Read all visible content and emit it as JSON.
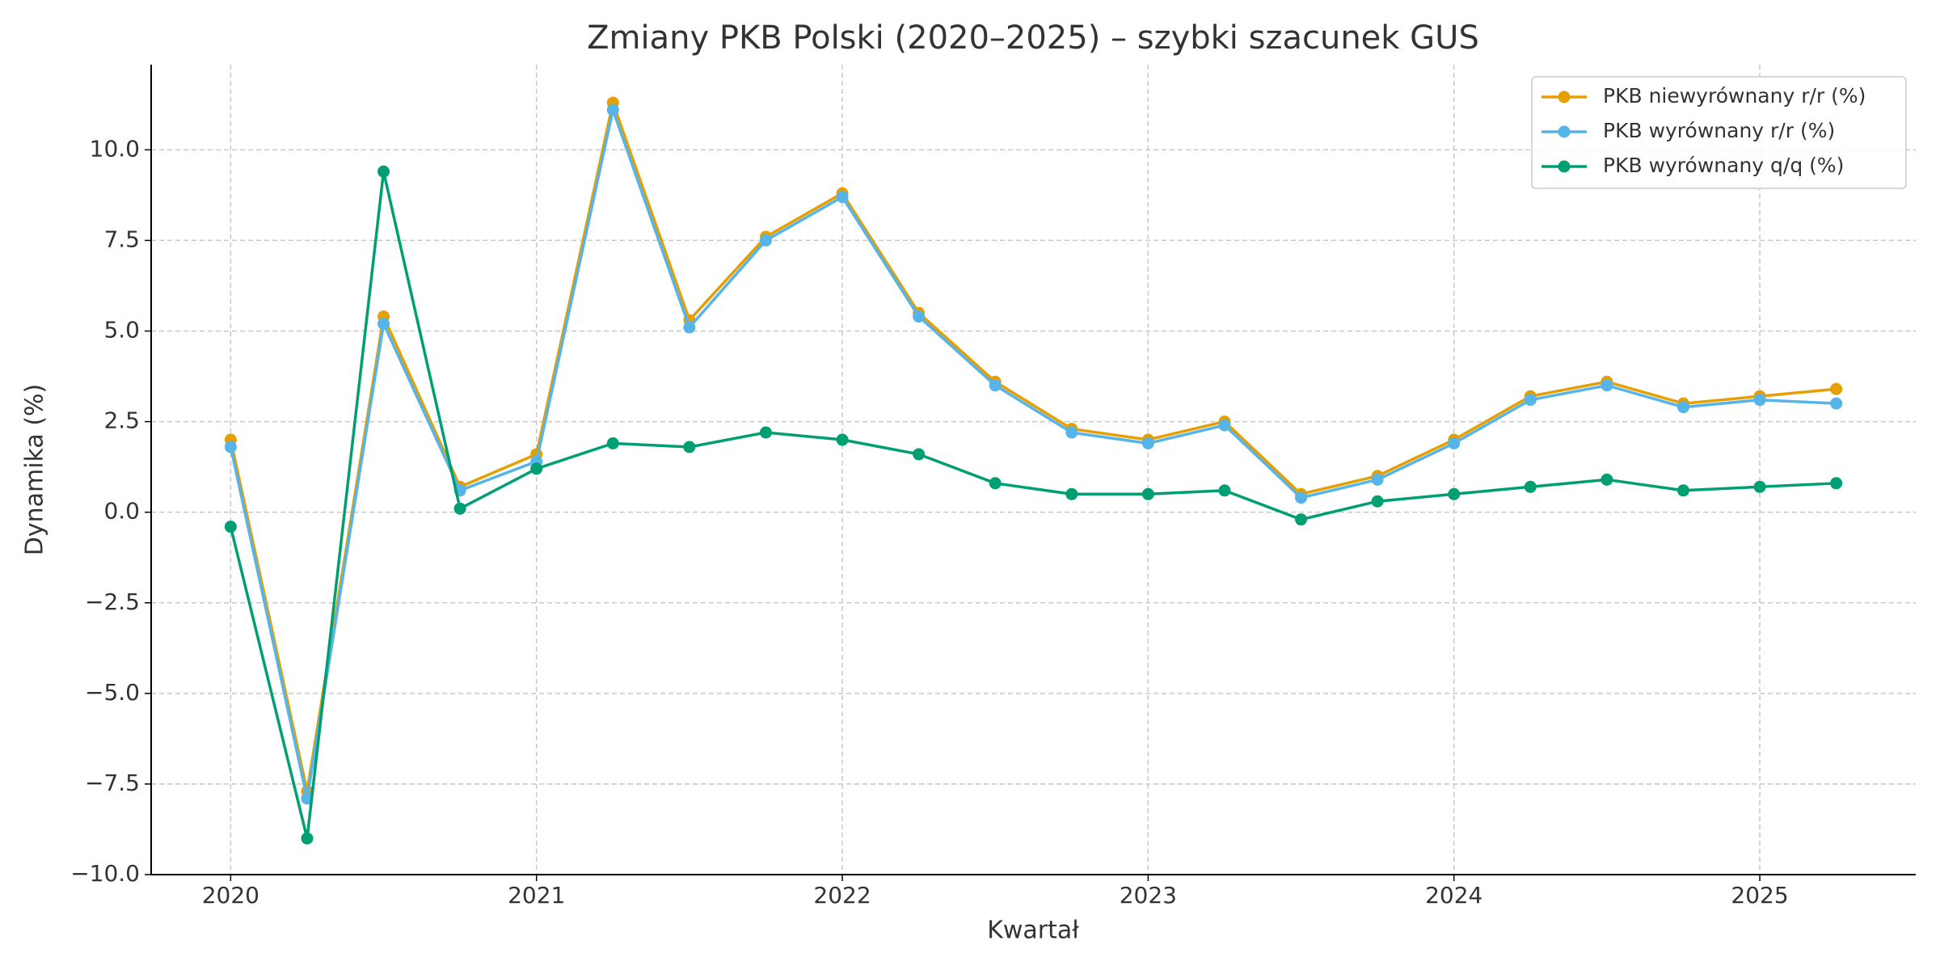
{
  "chart_data": {
    "type": "line",
    "title": "Zmiany PKB Polski (2020–2025) – szybki szacunek GUS",
    "x_label": "Kwartał",
    "y_label": "Dynamika (%)",
    "x": [
      2020,
      2020.25,
      2020.5,
      2020.75,
      2021,
      2021.25,
      2021.5,
      2021.75,
      2022,
      2022.25,
      2022.5,
      2022.75,
      2023,
      2023.25,
      2023.5,
      2023.75,
      2024,
      2024.25,
      2024.5,
      2024.75,
      2025,
      2025.25
    ],
    "series": [
      {
        "name": "PKB niewyrównany r/r (%)",
        "color": "#E69F00",
        "values": [
          2.0,
          -7.7,
          5.4,
          0.7,
          1.6,
          11.3,
          5.3,
          7.6,
          8.8,
          5.5,
          3.6,
          2.3,
          2.0,
          2.5,
          0.5,
          1.0,
          2.0,
          3.2,
          3.6,
          3.0,
          3.2,
          3.4
        ]
      },
      {
        "name": "PKB wyrównany r/r (%)",
        "color": "#56B4E9",
        "values": [
          1.8,
          -7.9,
          5.2,
          0.6,
          1.4,
          11.1,
          5.1,
          7.5,
          8.7,
          5.4,
          3.5,
          2.2,
          1.9,
          2.4,
          0.4,
          0.9,
          1.9,
          3.1,
          3.5,
          2.9,
          3.1,
          3.0
        ]
      },
      {
        "name": "PKB wyrównany q/q (%)",
        "color": "#009E73",
        "values": [
          -0.4,
          -9.0,
          9.4,
          0.1,
          1.2,
          1.9,
          1.8,
          2.2,
          2.0,
          1.6,
          0.8,
          0.5,
          0.5,
          0.6,
          -0.2,
          0.3,
          0.5,
          0.7,
          0.9,
          0.6,
          0.7,
          0.8
        ]
      }
    ],
    "xlim": [
      2019.74,
      2025.51
    ],
    "xticks": [
      2020,
      2021,
      2022,
      2023,
      2024,
      2025
    ],
    "ylim": [
      -10,
      12.35
    ],
    "yticks": [
      {
        "value": -10,
        "label": "−10.0"
      },
      {
        "value": -7.5,
        "label": "−7.5"
      },
      {
        "value": -5,
        "label": "−5.0"
      },
      {
        "value": -2.5,
        "label": "−2.5"
      },
      {
        "value": 0,
        "label": "0.0"
      },
      {
        "value": 2.5,
        "label": "2.5"
      },
      {
        "value": 5,
        "label": "5.0"
      },
      {
        "value": 7.5,
        "label": "7.5"
      },
      {
        "value": 10,
        "label": "10.0"
      }
    ],
    "grid": true,
    "legend": "upper-right"
  }
}
